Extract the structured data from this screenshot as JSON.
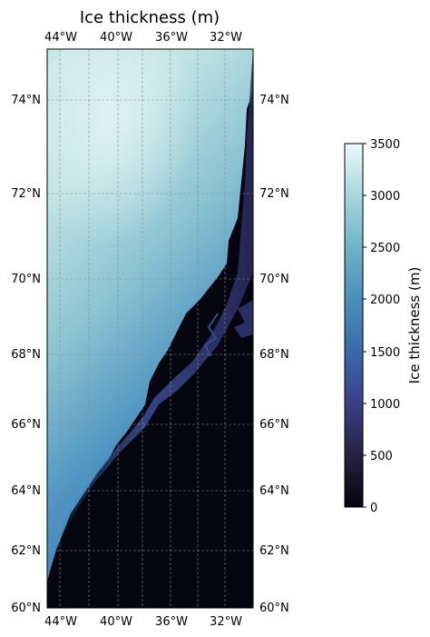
{
  "title": "Ice thickness (m)",
  "map": {
    "lon_labels": [
      "44°W",
      "40°W",
      "36°W",
      "32°W"
    ],
    "lon_values": [
      -44,
      -40,
      -36,
      -32
    ],
    "lat_labels": [
      "74°N",
      "72°N",
      "70°N",
      "68°N",
      "66°N",
      "64°N",
      "62°N",
      "60°N"
    ],
    "lat_values": [
      74,
      72,
      70,
      68,
      66,
      64,
      62,
      60
    ],
    "gridlines": true
  },
  "colorbar": {
    "label": "Ice thickness (m)",
    "ticks": [
      "0",
      "500",
      "1000",
      "1500",
      "2000",
      "2500",
      "3000",
      "3500"
    ],
    "tick_values": [
      0,
      500,
      1000,
      1500,
      2000,
      2500,
      3000,
      3500
    ],
    "range": [
      0,
      3500
    ],
    "colormap": [
      "#04050f",
      "#27213f",
      "#3c3f88",
      "#3a6aa8",
      "#4a8fbb",
      "#6fb3c6",
      "#a9d7dc",
      "#ecf9f9"
    ]
  }
}
